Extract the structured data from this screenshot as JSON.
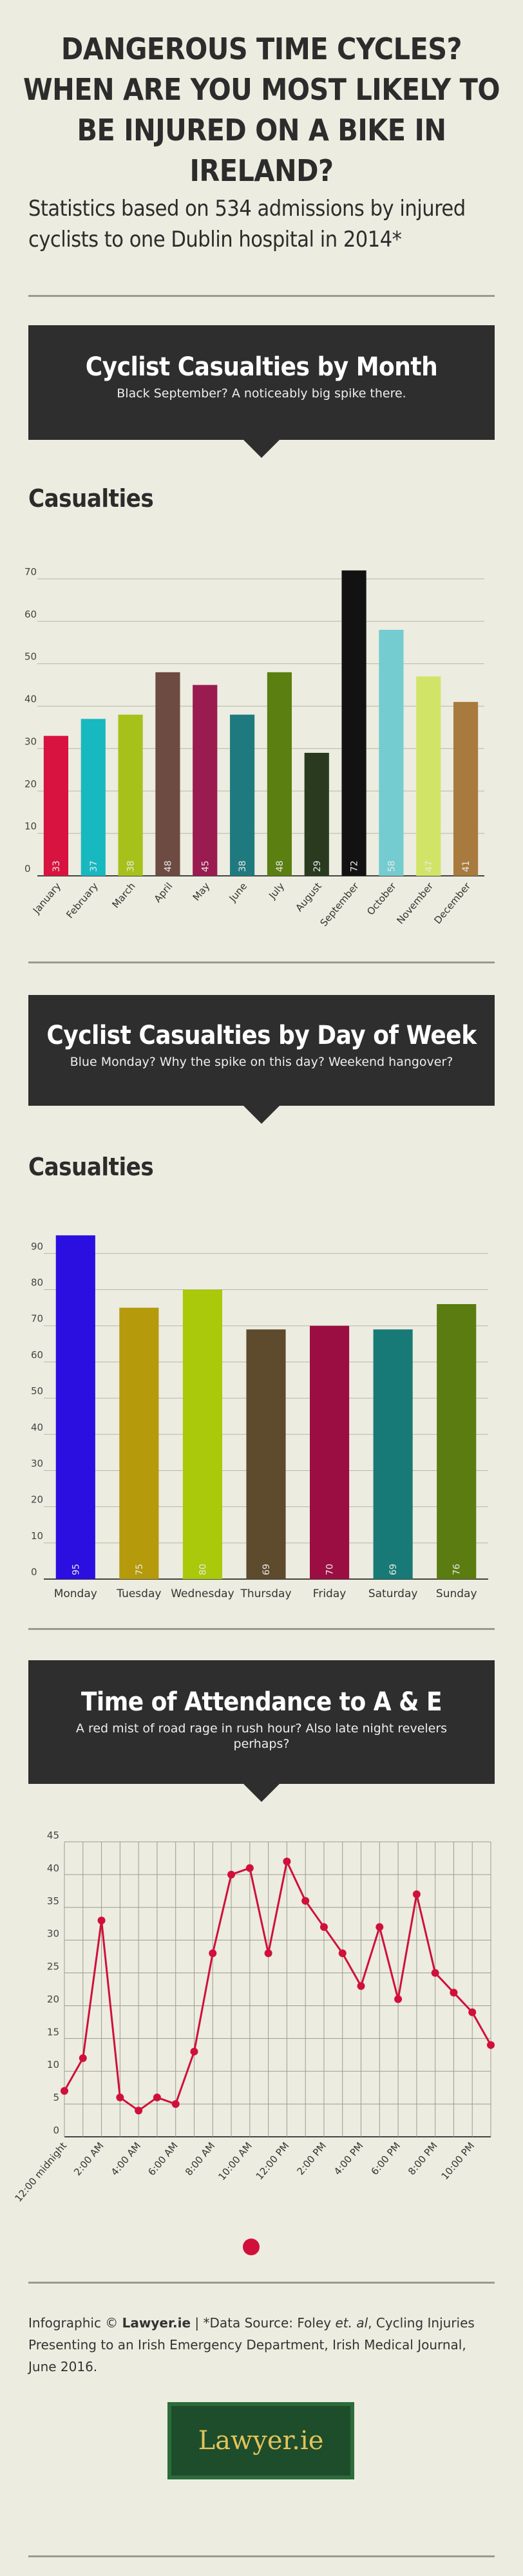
{
  "title": "DANGEROUS TIME CYCLES? WHEN ARE YOU MOST LIKELY TO BE INJURED ON A BIKE IN IRELAND?",
  "subtitle": "Statistics based on 534 admissions by injured cyclists to one Dublin hospital in 2014*",
  "section1": {
    "heading": "Cyclist Casualties by Month",
    "caption": "Black September? A noticeably big spike there.",
    "chart_label": "Casualties"
  },
  "section2": {
    "heading": "Cyclist Casualties by Day of Week",
    "caption": "Blue Monday? Why the spike on this day? Weekend hangover?",
    "chart_label": "Casualties"
  },
  "section3": {
    "heading": "Time of Attendance to A & E",
    "caption": "A red mist of road rage in rush hour? Also late night revelers perhaps?"
  },
  "footer": {
    "prefix": "Infographic © ",
    "brand": "Lawyer.ie",
    "source_start": " | *Data Source: Foley ",
    "source_italic": "et. al",
    "source_end": ", Cycling Injuries Presenting to an Irish Emergency Department, Irish Medical Journal, June 2016."
  },
  "logo_text": "Lawyer.ie",
  "chart_data": [
    {
      "type": "bar",
      "categories": [
        "January",
        "February",
        "March",
        "April",
        "May",
        "June",
        "July",
        "August",
        "September",
        "October",
        "November",
        "December"
      ],
      "values": [
        33,
        37,
        38,
        48,
        45,
        38,
        48,
        29,
        72,
        58,
        47,
        41
      ],
      "colors": [
        "#d8133f",
        "#17b8bf",
        "#a6c21a",
        "#6d4a42",
        "#9a1b4f",
        "#1f7a7f",
        "#5b7f10",
        "#2a3a1e",
        "#121212",
        "#74ccd0",
        "#d2e468",
        "#a87a3e"
      ],
      "ylim": [
        0,
        75
      ],
      "yticks": [
        0,
        10,
        20,
        30,
        40,
        50,
        60,
        70
      ],
      "ylabel": "Casualties",
      "grid": true
    },
    {
      "type": "bar",
      "categories": [
        "Monday",
        "Tuesday",
        "Wednesday",
        "Thursday",
        "Friday",
        "Saturday",
        "Sunday"
      ],
      "values": [
        95,
        75,
        80,
        69,
        70,
        69,
        76
      ],
      "colors": [
        "#2b0ee0",
        "#b59a0c",
        "#a9c90a",
        "#5e4a2c",
        "#9b0e42",
        "#187a76",
        "#5a7c10"
      ],
      "ylim": [
        0,
        97
      ],
      "yticks": [
        0,
        10,
        20,
        30,
        40,
        50,
        60,
        70,
        80,
        90
      ],
      "ylabel": "Casualties",
      "grid": true
    },
    {
      "type": "line",
      "x": [
        "12:00 midnight",
        "1:00 AM",
        "2:00 AM",
        "3:00 AM",
        "4:00 AM",
        "5:00 AM",
        "6:00 AM",
        "7:00 AM",
        "8:00 AM",
        "9:00 AM",
        "10:00 AM",
        "11:00 AM",
        "12:00 PM",
        "1:00 PM",
        "2:00 PM",
        "3:00 PM",
        "4:00 PM",
        "5:00 PM",
        "6:00 PM",
        "7:00 PM",
        "8:00 PM",
        "9:00 PM",
        "10:00 PM",
        "11:00 PM"
      ],
      "xtick_labels": [
        "12:00 midnight",
        "",
        "2:00 AM",
        "",
        "4:00 AM",
        "",
        "6:00 AM",
        "",
        "8:00 AM",
        "",
        "10:00 AM",
        "",
        "12:00 PM",
        "",
        "2:00 PM",
        "",
        "4:00 PM",
        "",
        "6:00 PM",
        "",
        "8:00 PM",
        "",
        "10:00 PM",
        ""
      ],
      "values": [
        7,
        12,
        33,
        6,
        4,
        6,
        5,
        13,
        28,
        40,
        41,
        28,
        42,
        36,
        32,
        28,
        23,
        32,
        21,
        37,
        25,
        22,
        19,
        14
      ],
      "color": "#d0103a",
      "ylim": [
        0,
        45
      ],
      "yticks": [
        0,
        5,
        10,
        15,
        20,
        25,
        30,
        35,
        40,
        45
      ],
      "grid": true
    }
  ]
}
